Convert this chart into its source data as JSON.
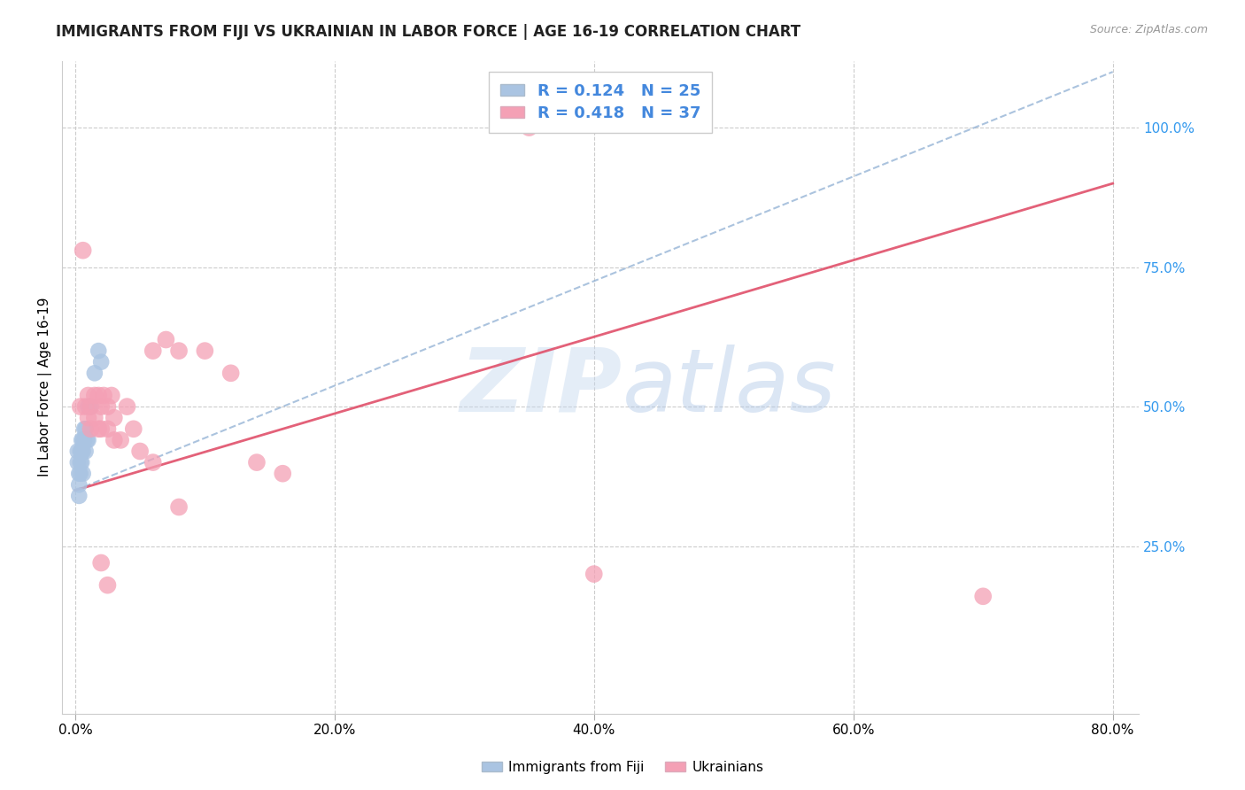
{
  "title": "IMMIGRANTS FROM FIJI VS UKRAINIAN IN LABOR FORCE | AGE 16-19 CORRELATION CHART",
  "source": "Source: ZipAtlas.com",
  "ylabel": "In Labor Force | Age 16-19",
  "x_tick_labels": [
    "0.0%",
    "20.0%",
    "40.0%",
    "60.0%",
    "80.0%"
  ],
  "x_tick_values": [
    0.0,
    0.2,
    0.4,
    0.6,
    0.8
  ],
  "y_tick_labels_right": [
    "25.0%",
    "50.0%",
    "75.0%",
    "100.0%"
  ],
  "y_tick_values": [
    0.25,
    0.5,
    0.75,
    1.0
  ],
  "xlim": [
    -0.01,
    0.82
  ],
  "ylim": [
    -0.05,
    1.12
  ],
  "fiji_R": "0.124",
  "fiji_N": "25",
  "ukraine_R": "0.418",
  "ukraine_N": "37",
  "fiji_color": "#aac4e2",
  "ukraine_color": "#f4a0b5",
  "fiji_line_color": "#88aad0",
  "ukraine_line_color": "#e0506a",
  "watermark_zip": "ZIP",
  "watermark_atlas": "atlas",
  "watermark_zip_color": "#c5d8ee",
  "watermark_atlas_color": "#b0c8e8",
  "legend_text_color": "#4488dd",
  "fiji_scatter_x": [
    0.002,
    0.002,
    0.003,
    0.003,
    0.003,
    0.004,
    0.004,
    0.004,
    0.005,
    0.005,
    0.005,
    0.006,
    0.006,
    0.006,
    0.007,
    0.007,
    0.008,
    0.008,
    0.009,
    0.01,
    0.01,
    0.012,
    0.015,
    0.018,
    0.02
  ],
  "fiji_scatter_y": [
    0.42,
    0.4,
    0.38,
    0.36,
    0.34,
    0.42,
    0.4,
    0.38,
    0.44,
    0.42,
    0.4,
    0.44,
    0.42,
    0.38,
    0.46,
    0.44,
    0.46,
    0.42,
    0.44,
    0.5,
    0.44,
    0.5,
    0.56,
    0.6,
    0.58
  ],
  "ukraine_scatter_x": [
    0.004,
    0.006,
    0.008,
    0.01,
    0.01,
    0.012,
    0.012,
    0.015,
    0.015,
    0.018,
    0.018,
    0.02,
    0.02,
    0.022,
    0.025,
    0.025,
    0.028,
    0.03,
    0.03,
    0.035,
    0.04,
    0.045,
    0.05,
    0.06,
    0.07,
    0.08,
    0.1,
    0.12,
    0.14,
    0.16,
    0.02,
    0.025,
    0.06,
    0.08,
    0.4,
    0.7,
    0.35
  ],
  "ukraine_scatter_y": [
    0.5,
    0.78,
    0.5,
    0.52,
    0.48,
    0.5,
    0.46,
    0.52,
    0.48,
    0.52,
    0.46,
    0.5,
    0.46,
    0.52,
    0.5,
    0.46,
    0.52,
    0.48,
    0.44,
    0.44,
    0.5,
    0.46,
    0.42,
    0.6,
    0.62,
    0.6,
    0.6,
    0.56,
    0.4,
    0.38,
    0.22,
    0.18,
    0.4,
    0.32,
    0.2,
    0.16,
    1.0
  ],
  "fiji_line_x0": 0.0,
  "fiji_line_y0": 0.35,
  "fiji_line_x1": 0.8,
  "fiji_line_y1": 1.1,
  "ukraine_line_x0": 0.0,
  "ukraine_line_y0": 0.35,
  "ukraine_line_x1": 0.8,
  "ukraine_line_y1": 0.9
}
